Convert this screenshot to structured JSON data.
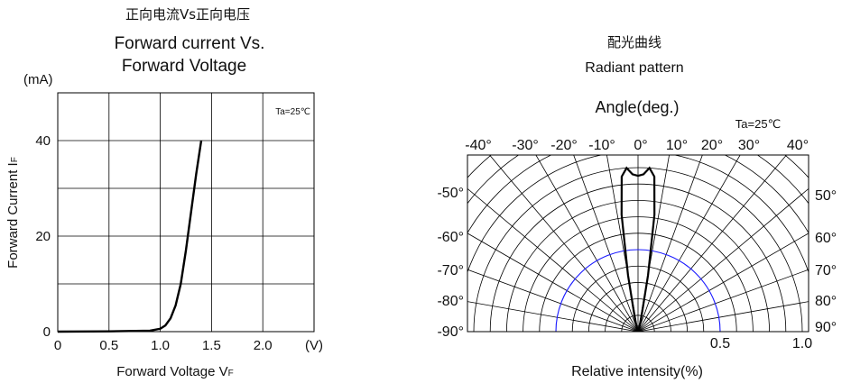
{
  "colors": {
    "axis": "#000000",
    "grid": "#000000",
    "curve": "#000000",
    "highlight": "#1a1aff",
    "background": "#ffffff"
  },
  "chart_data": [
    {
      "type": "line",
      "title_cn": "正向电流Vs正向电压",
      "title_line1": "Forward current Vs.",
      "title_line2": "Forward Voltage",
      "ylabel": "Forward Current IF",
      "ylabel_main": "Forward Current I",
      "ylabel_sub": "F",
      "xlabel": "Forward Voltage VF",
      "xlabel_main": "Forward Voltage V",
      "xlabel_sub": "F",
      "y_unit": "(mA)",
      "x_unit": "(V)",
      "annotation": "Ta=25℃",
      "xlim": [
        0,
        2.5
      ],
      "ylim": [
        0,
        50
      ],
      "x_ticks": [
        "0",
        "0.5",
        "1.0",
        "1.5",
        "2.0"
      ],
      "x_tick_values": [
        0,
        0.5,
        1.0,
        1.5,
        2.0
      ],
      "y_ticks": [
        "0",
        "20",
        "40"
      ],
      "y_tick_values": [
        0,
        20,
        40
      ],
      "grid": true,
      "series": [
        {
          "x": [
            0,
            0.5,
            0.9,
            1.0,
            1.05,
            1.1,
            1.15,
            1.2,
            1.25,
            1.3,
            1.35,
            1.4
          ],
          "y": [
            0,
            0.05,
            0.2,
            0.6,
            1.3,
            2.8,
            5.5,
            10,
            17,
            25,
            33,
            40
          ]
        }
      ]
    },
    {
      "type": "polar",
      "title_cn": "配光曲线",
      "title": "Radiant pattern",
      "angle_title": "Angle(deg.)",
      "annotation": "Ta=25℃",
      "xlabel": "Relative intensity(%)",
      "top_angle_labels": [
        "-40°",
        "-30°",
        "-20°",
        "-10°",
        "0°",
        "10°",
        "20°",
        "30°",
        "40°"
      ],
      "left_angle_labels": [
        "-50°",
        "-60°",
        "-70°",
        "-80°",
        "-90°"
      ],
      "right_angle_labels": [
        "50°",
        "60°",
        "70°",
        "80°",
        "90°"
      ],
      "radius_labels": [
        "0.5",
        "1.0"
      ],
      "radius_values": [
        0.5,
        1.0
      ],
      "angles_deg": [
        -90,
        -80,
        -70,
        -60,
        -50,
        -40,
        -30,
        -20,
        -10,
        0,
        10,
        20,
        30,
        40,
        50,
        60,
        70,
        80,
        90
      ],
      "highlight_radius": 0.5,
      "series": [
        {
          "angles_deg": [
            -90,
            -20,
            -15,
            -10,
            -8,
            -6,
            -4,
            -2,
            0,
            2,
            4,
            6,
            8,
            10,
            15,
            20,
            90
          ],
          "values": [
            0,
            0,
            0.06,
            0.35,
            0.72,
            0.95,
            1.0,
            0.96,
            0.95,
            0.96,
            1.0,
            0.95,
            0.72,
            0.35,
            0.06,
            0,
            0
          ]
        }
      ]
    }
  ]
}
